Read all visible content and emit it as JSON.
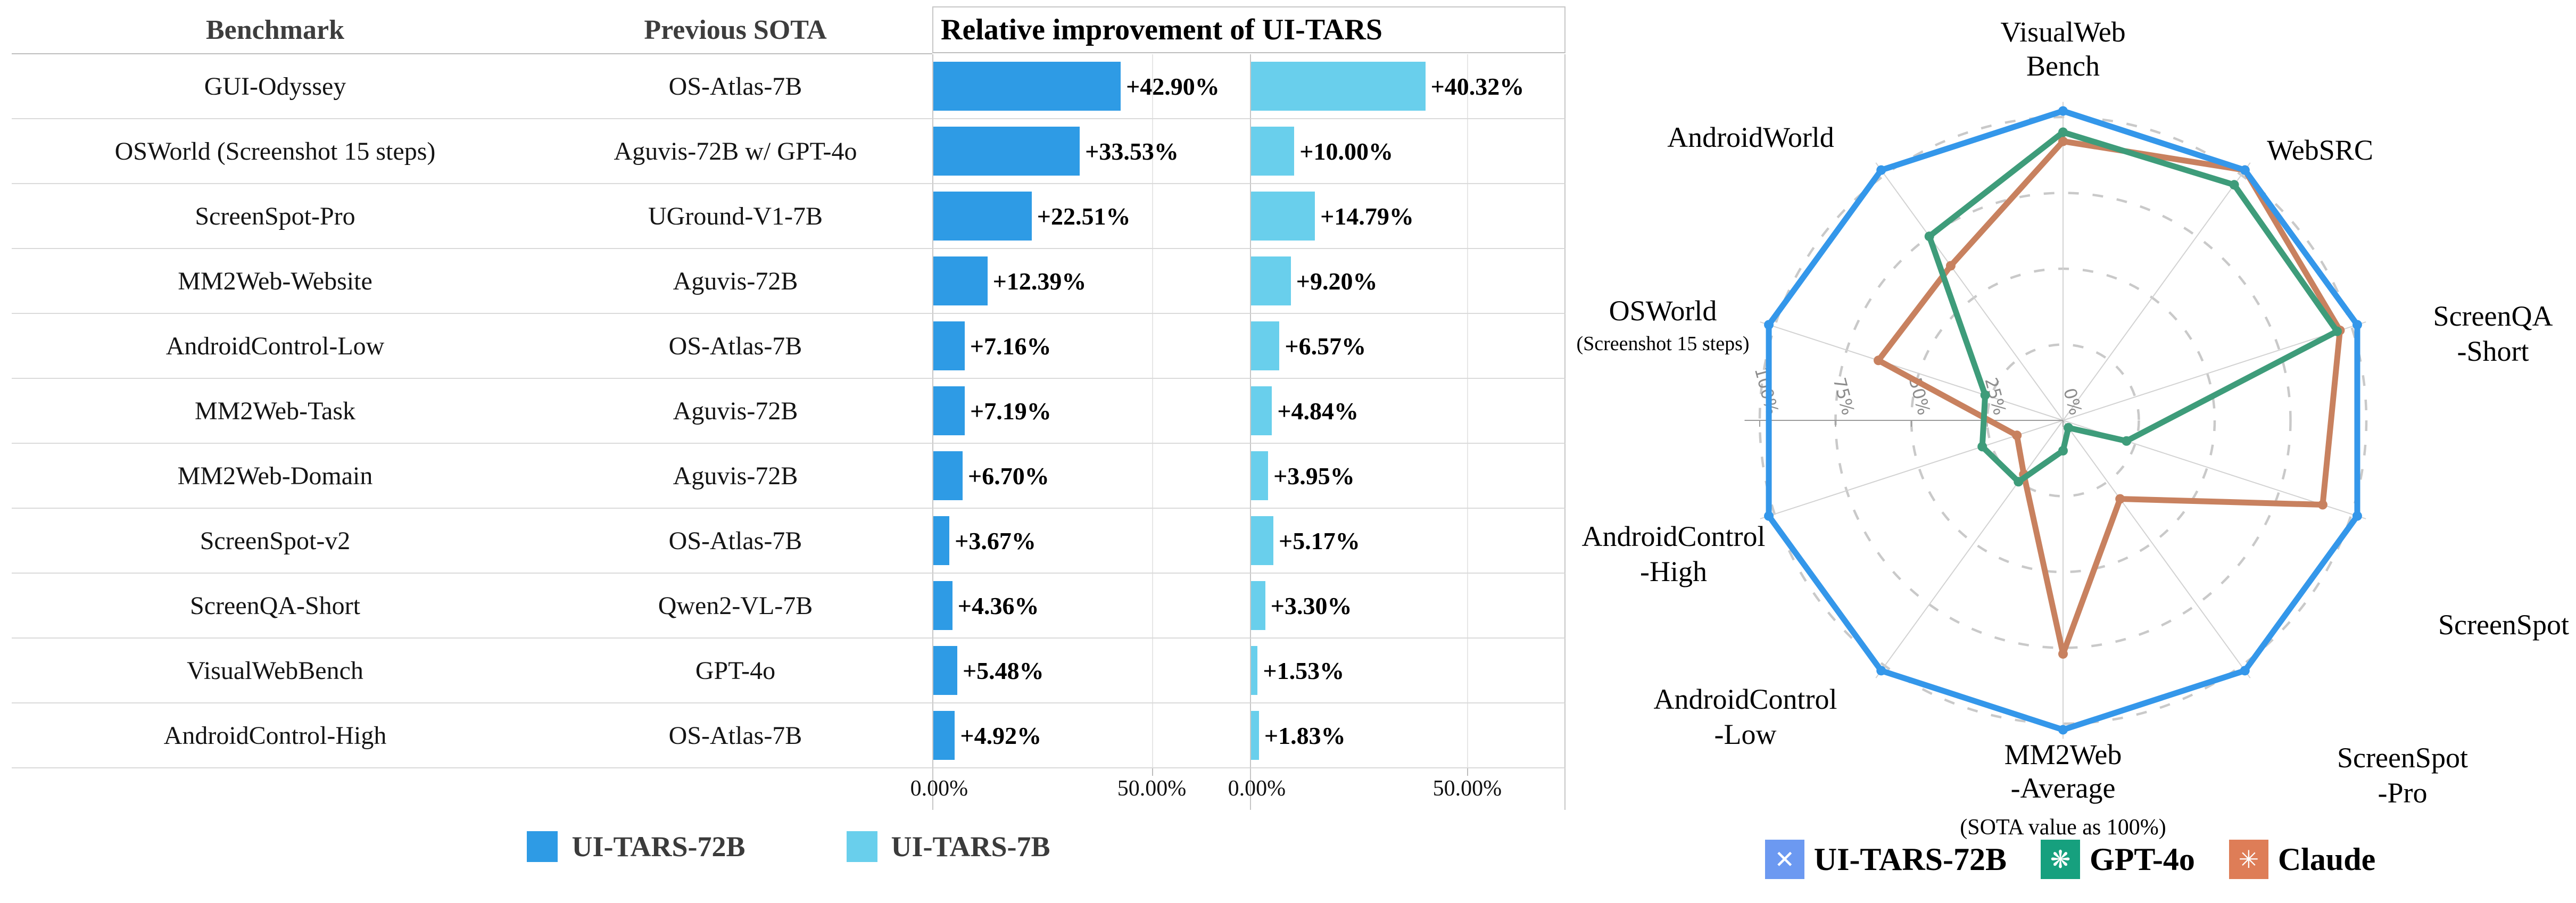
{
  "colors": {
    "bar_ui_tars_72b": "#2E9BE5",
    "bar_ui_tars_7b": "#69CFEC",
    "radar_ui_tars_72b": "#3497EA",
    "radar_gpt_4o": "#3E9C7A",
    "radar_claude": "#C8815F",
    "patch_ui_tars": "#6C99F1",
    "patch_gpt_4o": "#16A07E",
    "patch_claude": "#DE7D57",
    "row_line": "#dadada",
    "panel_border": "#c6c6c6"
  },
  "left_chart": {
    "header_benchmark": "Benchmark",
    "header_previous_sota": "Previous SOTA",
    "header_improvement": "Relative improvement of UI-TARS",
    "legend": [
      {
        "label": "UI-TARS-72B",
        "color": "#2E9BE5"
      },
      {
        "label": "UI-TARS-7B",
        "color": "#69CFEC"
      }
    ]
  },
  "radar_legend": [
    {
      "label": "UI-TARS-72B",
      "patch_color": "#6C99F1",
      "icon": "ui-tars-logo",
      "glyph": "✕"
    },
    {
      "label": "GPT-4o",
      "patch_color": "#16A07E",
      "icon": "openai-logo",
      "glyph": "❋"
    },
    {
      "label": "Claude",
      "patch_color": "#DE7D57",
      "icon": "claude-logo",
      "glyph": "✳"
    }
  ],
  "chart_data": [
    {
      "type": "bar",
      "orientation": "horizontal",
      "title": "Relative improvement of UI-TARS",
      "column_headers": [
        "Benchmark",
        "Previous SOTA"
      ],
      "categories": [
        "GUI-Odyssey",
        "OSWorld (Screenshot 15 steps)",
        "ScreenSpot-Pro",
        "MM2Web-Website",
        "AndroidControl-Low",
        "MM2Web-Task",
        "MM2Web-Domain",
        "ScreenSpot-v2",
        "ScreenQA-Short",
        "VisualWebBench",
        "AndroidControl-High"
      ],
      "previous_sota": [
        "OS-Atlas-7B",
        "Aguvis-72B w/ GPT-4o",
        "UGround-V1-7B",
        "Aguvis-72B",
        "OS-Atlas-7B",
        "Aguvis-72B",
        "Aguvis-72B",
        "OS-Atlas-7B",
        "Qwen2-VL-7B",
        "GPT-4o",
        "OS-Atlas-7B"
      ],
      "series": [
        {
          "name": "UI-TARS-72B",
          "color": "#2E9BE5",
          "values": [
            42.9,
            33.53,
            22.51,
            12.39,
            7.16,
            7.19,
            6.7,
            3.67,
            4.36,
            5.48,
            4.92
          ],
          "labels": [
            "+42.90%",
            "+33.53%",
            "+22.51%",
            "+12.39%",
            "+7.16%",
            "+7.19%",
            "+6.70%",
            "+3.67%",
            "+4.36%",
            "+5.48%",
            "+4.92%"
          ]
        },
        {
          "name": "UI-TARS-7B",
          "color": "#69CFEC",
          "values": [
            40.32,
            10.0,
            14.79,
            9.2,
            6.57,
            4.84,
            3.95,
            5.17,
            3.3,
            1.53,
            1.83
          ],
          "labels": [
            "+40.32%",
            "+10.00%",
            "+14.79%",
            "+9.20%",
            "+6.57%",
            "+4.84%",
            "+3.95%",
            "+5.17%",
            "+3.30%",
            "+1.53%",
            "+1.83%"
          ]
        }
      ],
      "xlim": [
        0,
        72.5
      ],
      "x_ticks": [
        {
          "value": 0,
          "label": "0.00%"
        },
        {
          "value": 50,
          "label": "50.00%"
        }
      ],
      "grid": "vertical line at 50%",
      "legend_position": "bottom"
    },
    {
      "type": "line",
      "variant": "radar-polar",
      "categories": [
        "VisualWebBench",
        "WebSRC",
        "ScreenQA-Short",
        "ScreenSpot",
        "ScreenSpot-Pro",
        "MM2Web-Average",
        "AndroidControl-Low",
        "AndroidControl-High",
        "OSWorld (Screenshot 15 steps)",
        "AndroidWorld"
      ],
      "category_label_lines": [
        [
          "VisualWeb",
          "Bench"
        ],
        [
          "WebSRC"
        ],
        [
          "ScreenQA",
          "-Short"
        ],
        [
          "ScreenSpot"
        ],
        [
          "ScreenSpot",
          "-Pro"
        ],
        [
          "MM2Web",
          "-Average"
        ],
        [
          "AndroidControl",
          "-Low"
        ],
        [
          "AndroidControl",
          "-High"
        ],
        [
          "OSWorld",
          "(Screenshot 15 steps)"
        ],
        [
          "AndroidWorld"
        ]
      ],
      "series": [
        {
          "name": "UI-TARS-72B",
          "color": "#3497EA",
          "values": [
            102,
            102,
            102,
            102,
            102,
            102,
            102,
            102,
            102,
            102
          ]
        },
        {
          "name": "GPT-4o",
          "color": "#3E9C7A",
          "values": [
            95,
            96,
            95,
            22,
            3,
            10,
            25,
            28,
            27,
            75
          ]
        },
        {
          "name": "Claude",
          "color": "#C8815F",
          "values": [
            92,
            102,
            96,
            90,
            32,
            77,
            22,
            16,
            64,
            63
          ]
        }
      ],
      "values_are_percent_of_previous_sota": true,
      "r_ticks": [
        "0%",
        "25%",
        "50%",
        "75%",
        "100%"
      ],
      "r_tick_values": [
        0,
        25,
        50,
        75,
        100
      ],
      "r_max": 105,
      "grid": "dashed concentric rings every 25%",
      "caption": "(SOTA value as 100%)",
      "legend_position": "bottom"
    }
  ]
}
